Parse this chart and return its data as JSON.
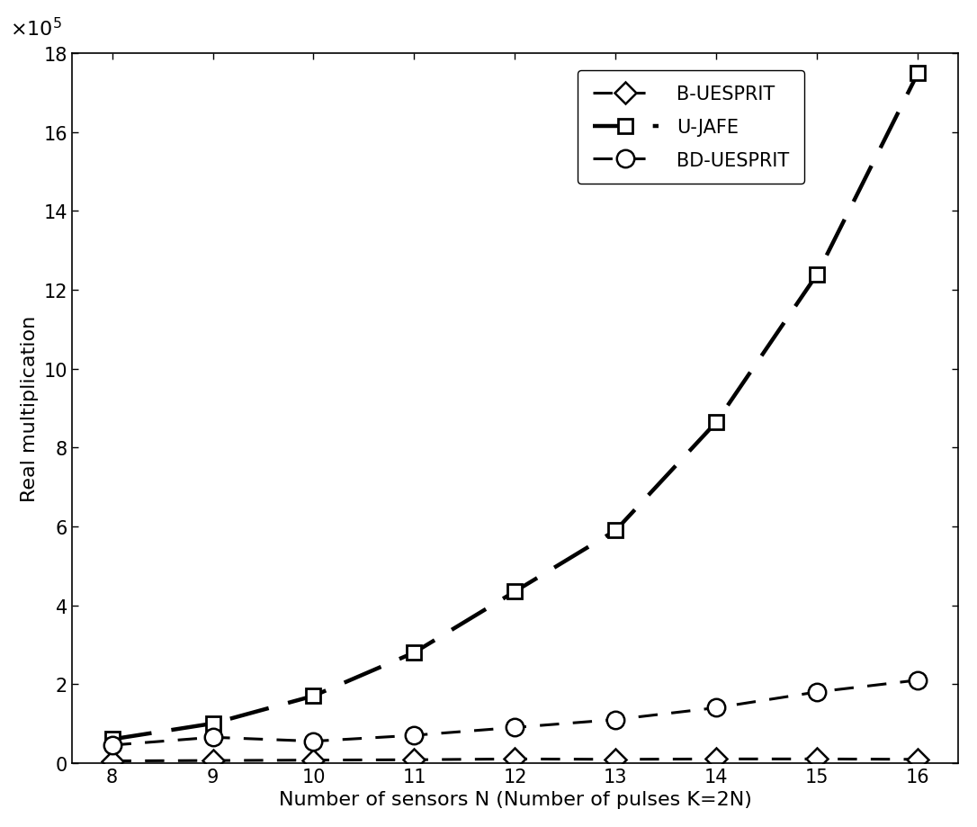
{
  "x": [
    8,
    9,
    10,
    11,
    12,
    13,
    14,
    15,
    16
  ],
  "B_UESPRIT": [
    5000,
    6000,
    7000,
    8000,
    10000,
    9000,
    10000,
    10000,
    9000
  ],
  "U_JAFE": [
    60000,
    100000,
    170000,
    280000,
    435000,
    590000,
    865000,
    1240000,
    1750000
  ],
  "BD_UESPRIT": [
    45000,
    65000,
    55000,
    70000,
    90000,
    110000,
    140000,
    180000,
    210000
  ],
  "xlabel": "Number of sensors N (Number of pulses K=2N)",
  "ylabel": "Real multiplication",
  "ylim": [
    0,
    1800000
  ],
  "yticks": [
    0,
    200000,
    400000,
    600000,
    800000,
    1000000,
    1200000,
    1400000,
    1600000,
    1800000
  ],
  "ytick_labels": [
    "0",
    "2",
    "4",
    "6",
    "8",
    "10",
    "12",
    "14",
    "16",
    "18"
  ],
  "xticks": [
    8,
    9,
    10,
    11,
    12,
    13,
    14,
    15,
    16
  ],
  "legend_labels": [
    "B-UESPRIT",
    "U-JAFE",
    "BD-UESPRIT"
  ],
  "line_color": "#000000",
  "background_color": "#ffffff",
  "label_fontsize": 16,
  "tick_fontsize": 15,
  "legend_fontsize": 15,
  "linewidth": 2.2,
  "linewidth_thick": 3.2,
  "markersize_diamond": 12,
  "markersize_square": 11,
  "markersize_circle": 14
}
